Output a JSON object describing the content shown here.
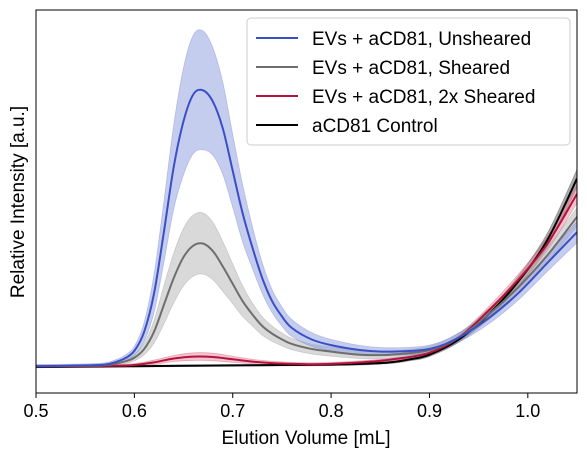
{
  "chart_data": {
    "type": "line",
    "xlabel": "Elution Volume [mL]",
    "ylabel": "Relative Intensity [a.u.]",
    "xlim": [
      0.5,
      1.05
    ],
    "ylim": [
      0,
      1
    ],
    "y_ticks_shown": false,
    "x_ticks": [
      0.5,
      0.6,
      0.7,
      0.8,
      0.9,
      1.0
    ],
    "x_tick_labels": [
      "0.5",
      "0.6",
      "0.7",
      "0.8",
      "0.9",
      "1.0"
    ],
    "grid": false,
    "legend_position": "top-right",
    "series": [
      {
        "name": "EVs + aCD81, Unsheared",
        "color": "#3b4fc4",
        "band_color": "#8c9ce0",
        "x": [
          0.5,
          0.55,
          0.57,
          0.58,
          0.59,
          0.6,
          0.61,
          0.62,
          0.63,
          0.64,
          0.65,
          0.66,
          0.67,
          0.68,
          0.69,
          0.7,
          0.71,
          0.72,
          0.73,
          0.74,
          0.75,
          0.76,
          0.78,
          0.8,
          0.83,
          0.86,
          0.9,
          0.93,
          0.96,
          0.99,
          1.02,
          1.05
        ],
        "y": [
          0.07,
          0.072,
          0.074,
          0.08,
          0.09,
          0.11,
          0.16,
          0.26,
          0.42,
          0.59,
          0.71,
          0.78,
          0.79,
          0.76,
          0.69,
          0.58,
          0.47,
          0.38,
          0.3,
          0.24,
          0.2,
          0.17,
          0.14,
          0.125,
          0.112,
          0.108,
          0.115,
          0.145,
          0.195,
          0.26,
          0.34,
          0.42
        ],
        "band_halfwidth": [
          0.004,
          0.004,
          0.005,
          0.006,
          0.008,
          0.012,
          0.025,
          0.05,
          0.08,
          0.11,
          0.14,
          0.155,
          0.155,
          0.14,
          0.12,
          0.095,
          0.075,
          0.055,
          0.04,
          0.03,
          0.025,
          0.022,
          0.018,
          0.015,
          0.012,
          0.01,
          0.01,
          0.012,
          0.015,
          0.018,
          0.022,
          0.028
        ]
      },
      {
        "name": "EVs + aCD81, Sheared",
        "color": "#6e6e6e",
        "band_color": "#b4b4b4",
        "x": [
          0.5,
          0.55,
          0.57,
          0.58,
          0.59,
          0.6,
          0.61,
          0.62,
          0.63,
          0.64,
          0.65,
          0.66,
          0.67,
          0.68,
          0.69,
          0.7,
          0.71,
          0.72,
          0.73,
          0.74,
          0.75,
          0.76,
          0.78,
          0.8,
          0.83,
          0.86,
          0.9,
          0.93,
          0.96,
          0.99,
          1.02,
          1.05
        ],
        "y": [
          0.07,
          0.071,
          0.073,
          0.076,
          0.082,
          0.092,
          0.115,
          0.16,
          0.23,
          0.3,
          0.355,
          0.385,
          0.39,
          0.37,
          0.33,
          0.285,
          0.24,
          0.205,
          0.175,
          0.155,
          0.14,
          0.128,
          0.115,
          0.108,
          0.1,
          0.1,
          0.112,
          0.145,
          0.205,
          0.275,
          0.36,
          0.46
        ],
        "band_halfwidth": [
          0.003,
          0.003,
          0.004,
          0.005,
          0.006,
          0.008,
          0.015,
          0.03,
          0.05,
          0.065,
          0.075,
          0.08,
          0.08,
          0.075,
          0.065,
          0.052,
          0.04,
          0.03,
          0.024,
          0.02,
          0.017,
          0.015,
          0.013,
          0.012,
          0.01,
          0.01,
          0.01,
          0.012,
          0.014,
          0.017,
          0.02,
          0.024
        ]
      },
      {
        "name": "EVs + aCD81, 2x Sheared",
        "color": "#b5123c",
        "band_color": "#e58aa0",
        "x": [
          0.5,
          0.55,
          0.58,
          0.6,
          0.62,
          0.64,
          0.66,
          0.68,
          0.7,
          0.72,
          0.74,
          0.76,
          0.78,
          0.8,
          0.83,
          0.86,
          0.9,
          0.93,
          0.96,
          0.99,
          1.02,
          1.05
        ],
        "y": [
          0.07,
          0.07,
          0.071,
          0.073,
          0.08,
          0.09,
          0.095,
          0.094,
          0.088,
          0.082,
          0.078,
          0.076,
          0.075,
          0.076,
          0.08,
          0.087,
          0.105,
          0.145,
          0.215,
          0.295,
          0.39,
          0.52
        ],
        "band_halfwidth": [
          0.003,
          0.003,
          0.003,
          0.004,
          0.006,
          0.008,
          0.01,
          0.01,
          0.008,
          0.006,
          0.005,
          0.004,
          0.004,
          0.004,
          0.004,
          0.004,
          0.005,
          0.007,
          0.01,
          0.014,
          0.018,
          0.024
        ]
      },
      {
        "name": "aCD81 Control",
        "color": "#000000",
        "band_color": "#555555",
        "x": [
          0.5,
          0.55,
          0.6,
          0.65,
          0.7,
          0.75,
          0.8,
          0.83,
          0.86,
          0.88,
          0.9,
          0.93,
          0.96,
          0.99,
          1.02,
          1.05
        ],
        "y": [
          0.068,
          0.069,
          0.07,
          0.071,
          0.072,
          0.073,
          0.074,
          0.076,
          0.08,
          0.088,
          0.1,
          0.14,
          0.205,
          0.29,
          0.4,
          0.56
        ],
        "band_halfwidth": [
          0.002,
          0.002,
          0.002,
          0.002,
          0.002,
          0.002,
          0.002,
          0.003,
          0.003,
          0.004,
          0.005,
          0.007,
          0.01,
          0.014,
          0.018,
          0.024
        ]
      }
    ]
  }
}
